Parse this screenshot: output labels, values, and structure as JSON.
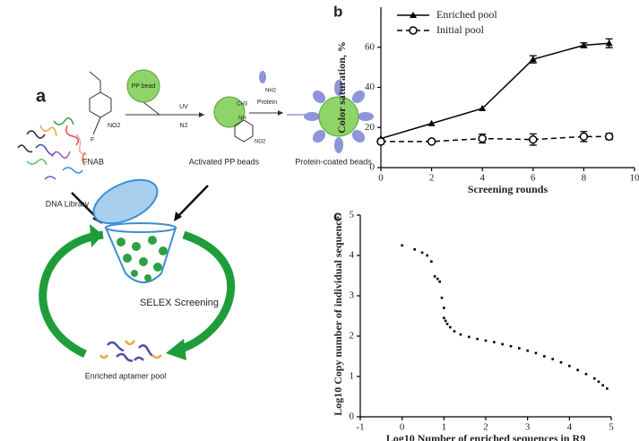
{
  "diagram": {
    "panel_label": "a",
    "labels": {
      "pp_bead": "PP bead",
      "uv": "UV",
      "n2": "N2",
      "protein": "Protein",
      "nh2": "NH2",
      "no2_a": "NO2",
      "f": "F",
      "ch3": "CH3",
      "nh": "NH",
      "no2_b": "NO2",
      "fnab": "FNAB",
      "activated": "Activated PP beads",
      "coated": "Protein-coated beads",
      "library": "DNA Library",
      "selex": "SELEX Screening",
      "enriched": "Enriched aptamer pool"
    }
  },
  "chart_data": [
    {
      "type": "line",
      "panel_label": "b",
      "x_label": "Screening rounds",
      "y_label": "Color saturation, %",
      "x": [
        0,
        2,
        4,
        6,
        8,
        9
      ],
      "series": [
        {
          "name": "Enriched pool",
          "color": "#000000",
          "marker": "triangle",
          "line_style": "solid",
          "values": [
            14.5,
            22,
            29.5,
            54,
            61,
            62
          ],
          "errors": [
            null,
            null,
            null,
            1.8,
            1.2,
            2.2
          ]
        },
        {
          "name": "Initial pool",
          "color": "#000000",
          "marker": "circle",
          "line_style": "dashed",
          "values": [
            13,
            13,
            14.5,
            14,
            15.5,
            15.5
          ],
          "errors": [
            1.2,
            0.8,
            2.2,
            2.8,
            2.5,
            1.5
          ]
        }
      ],
      "xlim": [
        0,
        10
      ],
      "xticks": [
        0,
        2,
        4,
        6,
        8,
        10
      ],
      "ylim": [
        0,
        80
      ],
      "yticks": [
        0,
        20,
        40,
        60
      ],
      "legend": "upper-left"
    },
    {
      "type": "scatter",
      "panel_label": "c",
      "x_label": "Log10 Number of enriched sequences in R9",
      "y_label": "Log10 Copy number of individual sequence",
      "color": "#000000",
      "x": [
        0,
        0.3,
        0.48,
        0.6,
        0.7,
        0.78,
        0.85,
        0.9,
        0.95,
        1.0,
        1.0,
        1.04,
        1.08,
        1.15,
        1.25,
        1.4,
        1.6,
        1.8,
        2.0,
        2.2,
        2.4,
        2.6,
        2.8,
        3.0,
        3.2,
        3.4,
        3.6,
        3.8,
        4.0,
        4.2,
        4.4,
        4.6,
        4.7,
        4.8,
        4.9
      ],
      "values": [
        4.25,
        4.15,
        4.07,
        4.0,
        3.85,
        3.48,
        3.42,
        3.35,
        2.95,
        2.7,
        2.45,
        2.38,
        2.3,
        2.22,
        2.12,
        2.04,
        1.98,
        1.93,
        1.89,
        1.85,
        1.8,
        1.75,
        1.7,
        1.64,
        1.58,
        1.5,
        1.43,
        1.35,
        1.26,
        1.16,
        1.06,
        0.95,
        0.87,
        0.78,
        0.7
      ],
      "xlim": [
        -1,
        5
      ],
      "xticks": [
        -1,
        0,
        1,
        2,
        3,
        4,
        5
      ],
      "ylim": [
        0,
        5
      ],
      "yticks": [
        0,
        1,
        2,
        3,
        4,
        5
      ]
    }
  ]
}
